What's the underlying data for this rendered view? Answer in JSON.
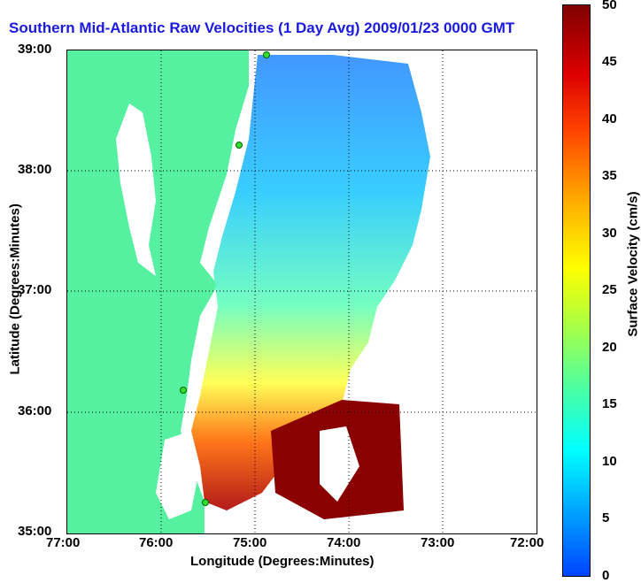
{
  "title": "Southern Mid-Atlantic Raw Velocities (1 Day Avg) 2009/01/23 0000 GMT",
  "xlabel": "Longitude (Degrees:Minutes)",
  "ylabel": "Latitude (Degrees:Minutes)",
  "x_ticks": [
    "77:00",
    "76:00",
    "75:00",
    "74:00",
    "73:00",
    "72:00"
  ],
  "y_ticks": [
    "39:00",
    "38:00",
    "37:00",
    "36:00",
    "35:00"
  ],
  "colorbar": {
    "label": "Surface Velocity (cm/s)",
    "ticks": [
      "50",
      "45",
      "40",
      "35",
      "30",
      "25",
      "20",
      "15",
      "10",
      "5",
      "0"
    ]
  },
  "colors": {
    "land": "#55f0a0",
    "title": "#1a1ae0",
    "radar_site": "#33dd33"
  }
}
